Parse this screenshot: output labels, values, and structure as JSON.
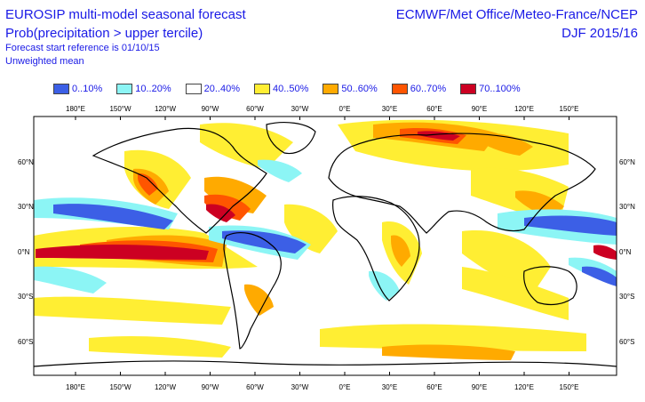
{
  "header": {
    "title": "EUROSIP multi-model seasonal forecast",
    "subtitle": "Prob(precipitation > upper tercile)",
    "reference": "Forecast start reference is 01/10/15",
    "mean_type": "Unweighted mean",
    "centres": "ECMWF/Met Office/Meteo-France/NCEP",
    "season": "DJF 2015/16"
  },
  "legend": [
    {
      "label": "0..10%",
      "color": "#3c5fe6"
    },
    {
      "label": "10..20%",
      "color": "#8cf5f5"
    },
    {
      "label": "20..40%",
      "color": "#ffffff"
    },
    {
      "label": "40..50%",
      "color": "#ffee33"
    },
    {
      "label": "50..60%",
      "color": "#ffaa00"
    },
    {
      "label": "60..70%",
      "color": "#ff5500"
    },
    {
      "label": "70..100%",
      "color": "#cc0022"
    }
  ],
  "axes": {
    "lon_ticks": [
      "180°E",
      "150°W",
      "120°W",
      "90°W",
      "60°W",
      "30°W",
      "0°E",
      "30°E",
      "60°E",
      "90°E",
      "120°E",
      "150°E"
    ],
    "lat_ticks": [
      "60°N",
      "30°N",
      "0°N",
      "30°S",
      "60°S"
    ]
  }
}
